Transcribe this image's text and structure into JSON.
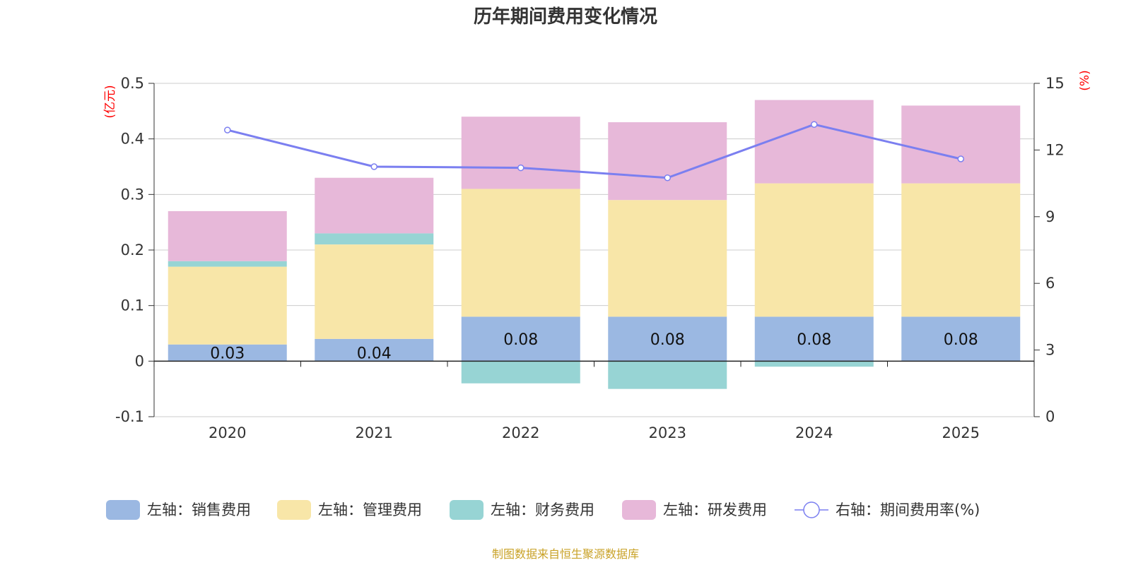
{
  "chart_data": {
    "type": "bar",
    "title": "历年期间费用变化情况",
    "categories": [
      "2020",
      "2021",
      "2022",
      "2023",
      "2024",
      "2025"
    ],
    "left_axis": {
      "unit": "(亿元)",
      "ylim": [
        -0.1,
        0.5
      ],
      "ticks": [
        "-0.1",
        "0",
        "0.1",
        "0.2",
        "0.3",
        "0.4",
        "0.5"
      ],
      "tick_values": [
        -0.1,
        0,
        0.1,
        0.2,
        0.3,
        0.4,
        0.5
      ]
    },
    "right_axis": {
      "unit": "(%)",
      "ylim": [
        0,
        15
      ],
      "ticks": [
        "0",
        "3",
        "6",
        "9",
        "12",
        "15"
      ],
      "tick_values": [
        0,
        3,
        6,
        9,
        12,
        15
      ]
    },
    "series": [
      {
        "name": "销售费用",
        "legend": "左轴：销售费用",
        "color": "#9bb8e2",
        "values": [
          0.03,
          0.04,
          0.08,
          0.08,
          0.08,
          0.08
        ],
        "labels": [
          "0.03",
          "0.04",
          "0.08",
          "0.08",
          "0.08",
          "0.08"
        ]
      },
      {
        "name": "管理费用",
        "legend": "左轴：管理费用",
        "color": "#f8e6a8",
        "values": [
          0.14,
          0.17,
          0.23,
          0.21,
          0.24,
          0.24
        ]
      },
      {
        "name": "财务费用",
        "legend": "左轴：财务费用",
        "color": "#97d4d4",
        "values": [
          0.01,
          0.02,
          -0.04,
          -0.05,
          -0.01,
          0.0
        ]
      },
      {
        "name": "研发费用",
        "legend": "左轴：研发费用",
        "color": "#e7b8d9",
        "values": [
          0.09,
          0.1,
          0.13,
          0.14,
          0.15,
          0.14
        ]
      }
    ],
    "line": {
      "name": "期间费用率",
      "legend": "右轴：期间费用率(%)",
      "color": "#7b7ff0",
      "values": [
        12.9,
        11.25,
        11.2,
        10.75,
        13.15,
        11.6
      ]
    },
    "source": "制图数据来自恒生聚源数据库"
  }
}
